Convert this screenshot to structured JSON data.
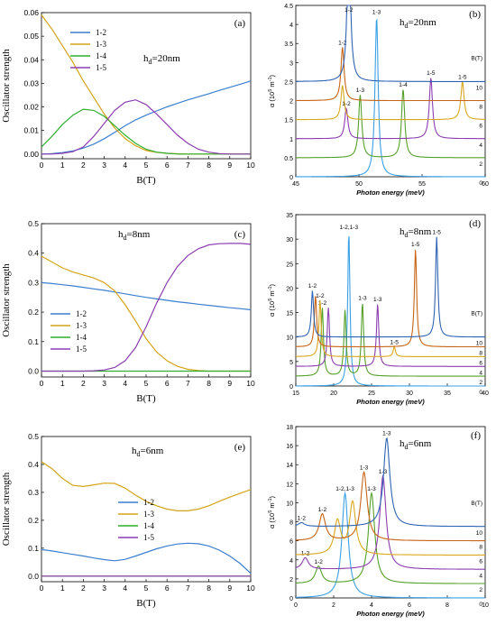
{
  "chart_data": [
    {
      "id": "a",
      "type": "line",
      "panel_label": "(a)",
      "annotation": "h_d=20nm",
      "xlabel": "B(T)",
      "ylabel": "Oscillator strength",
      "xlim": [
        0,
        10
      ],
      "ylim": [
        -0.002,
        0.06
      ],
      "xticks": [
        0,
        1,
        2,
        3,
        4,
        5,
        6,
        7,
        8,
        9,
        10
      ],
      "yticks": [
        0.0,
        0.01,
        0.02,
        0.03,
        0.04,
        0.05,
        0.06
      ],
      "ytick_labels": [
        "0.00",
        "0.01",
        "0.02",
        "0.03",
        "0.04",
        "0.05",
        "0.06"
      ],
      "legend_position": "top-left",
      "x": [
        0,
        0.5,
        1,
        1.5,
        2,
        2.5,
        3,
        3.5,
        4,
        4.5,
        5,
        5.5,
        6,
        6.5,
        7,
        7.5,
        8,
        8.5,
        9,
        9.5,
        10
      ],
      "series": [
        {
          "name": "1-2",
          "color": "#3c7fd0",
          "values": [
            0,
            0.0002,
            0.0006,
            0.0013,
            0.0025,
            0.0042,
            0.0065,
            0.0092,
            0.012,
            0.0145,
            0.0165,
            0.0183,
            0.02,
            0.0215,
            0.023,
            0.0243,
            0.0256,
            0.027,
            0.0283,
            0.0296,
            0.031
          ]
        },
        {
          "name": "1-3",
          "color": "#d4a418",
          "values": [
            0.059,
            0.053,
            0.046,
            0.039,
            0.031,
            0.024,
            0.017,
            0.011,
            0.0065,
            0.0035,
            0.0015,
            0.0007,
            0.0003,
            0.0001,
            0,
            0,
            0,
            0,
            0,
            0,
            0
          ]
        },
        {
          "name": "1-4",
          "color": "#2eae2e",
          "values": [
            0.003,
            0.0075,
            0.0125,
            0.0165,
            0.019,
            0.0185,
            0.016,
            0.012,
            0.008,
            0.0045,
            0.002,
            0.0008,
            0.0003,
            0,
            0,
            0,
            0,
            0,
            0,
            0,
            0
          ]
        },
        {
          "name": "1-5",
          "color": "#8c3db0",
          "values": [
            0,
            0,
            0.0003,
            0.001,
            0.003,
            0.0075,
            0.013,
            0.0185,
            0.022,
            0.023,
            0.021,
            0.017,
            0.0125,
            0.008,
            0.0045,
            0.002,
            0.0008,
            0.0002,
            0,
            0,
            0
          ]
        }
      ]
    },
    {
      "id": "c",
      "type": "line",
      "panel_label": "(c)",
      "annotation": "h_d=8nm",
      "xlabel": "B(T)",
      "ylabel": "Oscillator strength",
      "xlim": [
        0,
        10
      ],
      "ylim": [
        -0.02,
        0.5
      ],
      "xticks": [
        0,
        1,
        2,
        3,
        4,
        5,
        6,
        7,
        8,
        9,
        10
      ],
      "yticks": [
        0.0,
        0.1,
        0.2,
        0.3,
        0.4,
        0.5
      ],
      "ytick_labels": [
        "0.0",
        "0.1",
        "0.2",
        "0.3",
        "0.4",
        "0.5"
      ],
      "legend_position": "bottom-left",
      "x": [
        0,
        0.5,
        1,
        1.5,
        2,
        2.5,
        3,
        3.5,
        4,
        4.5,
        5,
        5.5,
        6,
        6.5,
        7,
        7.5,
        8,
        8.5,
        9,
        9.5,
        10
      ],
      "series": [
        {
          "name": "1-2",
          "color": "#3c7fd0",
          "values": [
            0.3,
            0.297,
            0.293,
            0.289,
            0.284,
            0.279,
            0.274,
            0.268,
            0.262,
            0.256,
            0.25,
            0.245,
            0.24,
            0.235,
            0.231,
            0.227,
            0.223,
            0.219,
            0.215,
            0.212,
            0.208
          ]
        },
        {
          "name": "1-3",
          "color": "#d4a418",
          "values": [
            0.39,
            0.37,
            0.35,
            0.336,
            0.326,
            0.316,
            0.3,
            0.272,
            0.225,
            0.17,
            0.11,
            0.065,
            0.035,
            0.016,
            0.006,
            0.002,
            0,
            0,
            0,
            0,
            0
          ]
        },
        {
          "name": "1-4",
          "color": "#2eae2e",
          "values": [
            0,
            0,
            0,
            0,
            0,
            0,
            0,
            0,
            0,
            0,
            0,
            0,
            0,
            0,
            0,
            0,
            0,
            0,
            0,
            0,
            0
          ]
        },
        {
          "name": "1-5",
          "color": "#8c3db0",
          "values": [
            0,
            0,
            0,
            0,
            0,
            0.001,
            0.004,
            0.012,
            0.035,
            0.08,
            0.15,
            0.23,
            0.3,
            0.355,
            0.392,
            0.415,
            0.428,
            0.432,
            0.433,
            0.433,
            0.43
          ]
        }
      ]
    },
    {
      "id": "e",
      "type": "line",
      "panel_label": "(e)",
      "annotation": "h_d=6nm",
      "xlabel": "B(T)",
      "ylabel": "Oscillator strength",
      "xlim": [
        0,
        10
      ],
      "ylim": [
        -0.02,
        0.5
      ],
      "xticks": [
        0,
        1,
        2,
        3,
        4,
        5,
        6,
        7,
        8,
        9,
        10
      ],
      "yticks": [
        0.0,
        0.1,
        0.2,
        0.3,
        0.4,
        0.5
      ],
      "ytick_labels": [
        "0.0",
        "0.1",
        "0.2",
        "0.3",
        "0.4",
        "0.5"
      ],
      "legend_position": "center",
      "x": [
        0,
        0.5,
        1,
        1.5,
        2,
        2.5,
        3,
        3.5,
        4,
        4.5,
        5,
        5.5,
        6,
        6.5,
        7,
        7.5,
        8,
        8.5,
        9,
        9.5,
        10
      ],
      "series": [
        {
          "name": "1-2",
          "color": "#3c7fd0",
          "values": [
            0.095,
            0.09,
            0.084,
            0.078,
            0.072,
            0.065,
            0.059,
            0.055,
            0.06,
            0.072,
            0.085,
            0.098,
            0.108,
            0.115,
            0.118,
            0.116,
            0.108,
            0.093,
            0.072,
            0.045,
            0.01
          ]
        },
        {
          "name": "1-3",
          "color": "#d4a418",
          "values": [
            0.41,
            0.385,
            0.35,
            0.325,
            0.321,
            0.327,
            0.333,
            0.332,
            0.315,
            0.29,
            0.268,
            0.252,
            0.24,
            0.234,
            0.234,
            0.24,
            0.252,
            0.268,
            0.283,
            0.297,
            0.31
          ]
        },
        {
          "name": "1-4",
          "color": "#2eae2e",
          "values": [
            0,
            0,
            0,
            0,
            0,
            0,
            0,
            0,
            0,
            0,
            0,
            0,
            0,
            0,
            0,
            0,
            0,
            0,
            0,
            0,
            0
          ]
        },
        {
          "name": "1-5",
          "color": "#8c3db0",
          "values": [
            0,
            0,
            0,
            0,
            0,
            0,
            0,
            0,
            0,
            0,
            0,
            0,
            0,
            0,
            0,
            0,
            0,
            0,
            0,
            0,
            0
          ]
        }
      ]
    },
    {
      "id": "b",
      "type": "line",
      "panel_label": "(b)",
      "annotation": "h_d=20nm",
      "xlabel": "Photon energy (meV)",
      "ylabel": "α (10^5 m^-1)",
      "xlim": [
        45,
        60
      ],
      "ylim": [
        0,
        4.5
      ],
      "xticks": [
        45,
        50,
        55,
        60
      ],
      "yticks": [
        0,
        0.5,
        1,
        1.5,
        2,
        2.5,
        3,
        3.5,
        4,
        4.5
      ],
      "ytick_labels": [
        "0",
        "0.5",
        "1",
        "1.5",
        "2",
        "2.5",
        "3",
        "3.5",
        "4",
        "4.5"
      ],
      "b_axis_label": "B(T)",
      "width": 0.15,
      "offset_curves": [
        {
          "b": "0",
          "baseline": 0,
          "color": "#3aa0e6",
          "peaks": [
            {
              "x": 51.4,
              "h": 4.2,
              "label": "1-3"
            }
          ]
        },
        {
          "b": "2",
          "baseline": 0.5,
          "color": "#55a02a",
          "peaks": [
            {
              "x": 50.1,
              "h": 1.65,
              "label": "1-3"
            },
            {
              "x": 53.5,
              "h": 1.8,
              "label": "1-4"
            }
          ]
        },
        {
          "b": "4",
          "baseline": 1.0,
          "color": "#8c3db0",
          "peaks": [
            {
              "x": 49.0,
              "h": 0.8,
              "label": "1-2"
            },
            {
              "x": 55.7,
              "h": 1.6,
              "label": "1-5"
            }
          ]
        },
        {
          "b": "6",
          "baseline": 1.5,
          "color": "#d9a81c",
          "peaks": [
            {
              "x": 48.7,
              "h": 0.9,
              "label": ""
            },
            {
              "x": 58.2,
              "h": 1.0,
              "label": "1-5"
            }
          ]
        },
        {
          "b": "8",
          "baseline": 2.0,
          "color": "#c86414",
          "peaks": [
            {
              "x": 48.7,
              "h": 1.4,
              "label": "1-2"
            }
          ]
        },
        {
          "b": "10",
          "baseline": 2.5,
          "color": "#2f64b4",
          "peaks": [
            {
              "x": 49.2,
              "h": 4.1,
              "label": "1-2"
            }
          ]
        }
      ]
    },
    {
      "id": "d",
      "type": "line",
      "panel_label": "(d)",
      "annotation": "h_d=8nm",
      "xlabel": "Photon energy (meV)",
      "ylabel": "α (10^5 m^-1)",
      "xlim": [
        15,
        40
      ],
      "ylim": [
        0,
        35
      ],
      "xticks": [
        15,
        20,
        25,
        30,
        35,
        40
      ],
      "yticks": [
        0,
        5,
        10,
        15,
        20,
        25,
        30,
        35
      ],
      "ytick_labels": [
        "0",
        "5",
        "10",
        "15",
        "20",
        "25",
        "30",
        "35"
      ],
      "b_axis_label": "B(T)",
      "width": 0.18,
      "offset_curves": [
        {
          "b": "0",
          "baseline": 0,
          "color": "#3aa0e6",
          "peaks": [
            {
              "x": 22.0,
              "h": 31.5,
              "label": "1-2,1-3"
            }
          ]
        },
        {
          "b": "2",
          "baseline": 2,
          "color": "#55a02a",
          "peaks": [
            {
              "x": 18.5,
              "h": 14,
              "label": "1-2"
            },
            {
              "x": 21.5,
              "h": 13.5,
              "label": ""
            },
            {
              "x": 23.8,
              "h": 15,
              "label": "1-3"
            }
          ]
        },
        {
          "b": "4",
          "baseline": 4,
          "color": "#8c3db0",
          "peaks": [
            {
              "x": 19.3,
              "h": 12,
              "label": ""
            },
            {
              "x": 25.8,
              "h": 12.8,
              "label": "1-3"
            }
          ]
        },
        {
          "b": "6",
          "baseline": 6,
          "color": "#d9a81c",
          "peaks": [
            {
              "x": 18.2,
              "h": 11.5,
              "label": "1-2"
            },
            {
              "x": 28.0,
              "h": 2.0,
              "label": "1-5"
            }
          ]
        },
        {
          "b": "8",
          "baseline": 8,
          "color": "#c86414",
          "peaks": [
            {
              "x": 17.6,
              "h": 10.5,
              "label": ""
            },
            {
              "x": 30.8,
              "h": 20,
              "label": "1-5"
            }
          ]
        },
        {
          "b": "10",
          "baseline": 10,
          "color": "#2f64b4",
          "peaks": [
            {
              "x": 17.2,
              "h": 9.5,
              "label": "1-2"
            },
            {
              "x": 33.6,
              "h": 20.5,
              "label": "1-5"
            }
          ]
        }
      ]
    },
    {
      "id": "f",
      "type": "line",
      "panel_label": "(f)",
      "annotation": "h_d=6nm",
      "xlabel": "Photon energy (meV)",
      "ylabel": "α (10^5 m^-1)",
      "xlim": [
        0,
        10
      ],
      "ylim": [
        0,
        18
      ],
      "xticks": [
        0,
        2,
        4,
        6,
        8,
        10
      ],
      "yticks": [
        0,
        2,
        4,
        6,
        8,
        10,
        12,
        14,
        16,
        18
      ],
      "ytick_labels": [
        "0",
        "2",
        "4",
        "6",
        "8",
        "10",
        "12",
        "14",
        "16",
        "18"
      ],
      "b_axis_label": "B(T)",
      "width": 0.2,
      "offset_curves": [
        {
          "b": "0",
          "baseline": 0,
          "color": "#3aa0e6",
          "peaks": [
            {
              "x": 2.6,
              "h": 11,
              "label": "1-2,1-3"
            }
          ]
        },
        {
          "b": "2",
          "baseline": 1.5,
          "color": "#55a02a",
          "peaks": [
            {
              "x": 1.2,
              "h": 1.8,
              "label": "1-2"
            },
            {
              "x": 4.0,
              "h": 9.5,
              "label": "1-3"
            }
          ]
        },
        {
          "b": "4",
          "baseline": 3.0,
          "color": "#8c3db0",
          "peaks": [
            {
              "x": 0.5,
              "h": 1.2,
              "label": "1-2"
            },
            {
              "x": 4.6,
              "h": 9.8,
              "label": "1-3"
            }
          ]
        },
        {
          "b": "6",
          "baseline": 4.5,
          "color": "#d9a81c",
          "peaks": [
            {
              "x": 2.2,
              "h": 3.5,
              "label": ""
            },
            {
              "x": 3.0,
              "h": 5.5,
              "label": ""
            }
          ]
        },
        {
          "b": "8",
          "baseline": 6.0,
          "color": "#c86414",
          "peaks": [
            {
              "x": 1.4,
              "h": 2.8,
              "label": "1-2"
            },
            {
              "x": 3.6,
              "h": 7.2,
              "label": "1-3"
            }
          ]
        },
        {
          "b": "10",
          "baseline": 7.5,
          "color": "#2f64b4",
          "peaks": [
            {
              "x": 0.3,
              "h": 0.4,
              "label": "1-2"
            },
            {
              "x": 4.8,
              "h": 9.3,
              "label": "1-3"
            }
          ]
        }
      ]
    }
  ]
}
